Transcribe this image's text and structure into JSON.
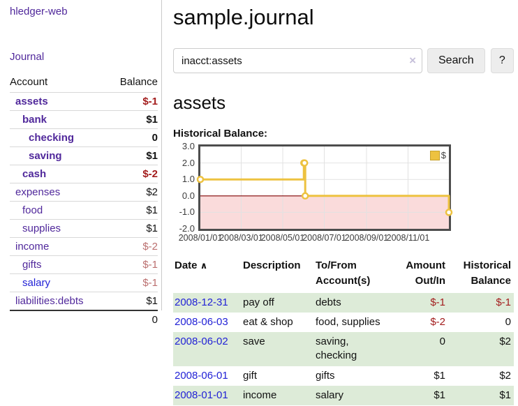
{
  "sidebar": {
    "brand": "hledger-web",
    "nav_journal": "Journal",
    "accounts_table": {
      "col_account": "Account",
      "col_balance": "Balance",
      "rows": [
        {
          "name": "assets",
          "indent": 1,
          "bold": true,
          "balance": "$-1",
          "balance_tone": "neg"
        },
        {
          "name": "bank",
          "indent": 2,
          "bold": true,
          "balance": "$1",
          "balance_tone": "pos"
        },
        {
          "name": "checking",
          "indent": 3,
          "bold": true,
          "balance": "0",
          "balance_tone": "pos"
        },
        {
          "name": "saving",
          "indent": 3,
          "bold": true,
          "balance": "$1",
          "balance_tone": "pos"
        },
        {
          "name": "cash",
          "indent": 2,
          "bold": true,
          "balance": "$-2",
          "balance_tone": "neg"
        },
        {
          "name": "expenses",
          "indent": 1,
          "bold": false,
          "balance": "$2",
          "balance_tone": "pos"
        },
        {
          "name": "food",
          "indent": 2,
          "bold": false,
          "balance": "$1",
          "balance_tone": "pos"
        },
        {
          "name": "supplies",
          "indent": 2,
          "bold": false,
          "balance": "$1",
          "balance_tone": "pos"
        },
        {
          "name": "income",
          "indent": 1,
          "bold": false,
          "balance": "$-2",
          "balance_tone": "negsoft"
        },
        {
          "name": "gifts",
          "indent": 2,
          "bold": false,
          "balance": "$-1",
          "balance_tone": "negsoft"
        },
        {
          "name": "salary",
          "indent": 2,
          "bold": false,
          "link_color": "blue",
          "balance": "$-1",
          "balance_tone": "negsoft"
        },
        {
          "name": "liabilities:debts",
          "indent": 1,
          "bold": false,
          "balance": "$1",
          "balance_tone": "pos"
        }
      ],
      "total": "0"
    }
  },
  "main": {
    "title": "sample.journal",
    "search": {
      "value": "inacct:assets",
      "clear_icon": "×",
      "search_button": "Search",
      "help_button": "?"
    },
    "account_heading": "assets",
    "chart_title": "Historical Balance:"
  },
  "chart_data": {
    "type": "line",
    "style": "step-after",
    "title": "Historical Balance",
    "x_range": [
      "2008-01-01",
      "2008-12-31"
    ],
    "ylim": [
      -2,
      3
    ],
    "y_ticks": [
      {
        "label": "3.0",
        "value": 3
      },
      {
        "label": "2.0",
        "value": 2
      },
      {
        "label": "1.0",
        "value": 1
      },
      {
        "label": "0.0",
        "value": 0
      },
      {
        "label": "-1.0",
        "value": -1
      },
      {
        "label": "-2.0",
        "value": -2
      }
    ],
    "x_ticks": [
      {
        "label": "2008/01/01",
        "date": "2008-01-01"
      },
      {
        "label": "2008/03/01",
        "date": "2008-03-01"
      },
      {
        "label": "2008/05/01",
        "date": "2008-05-01"
      },
      {
        "label": "2008/07/01",
        "date": "2008-07-01"
      },
      {
        "label": "2008/09/01",
        "date": "2008-09-01"
      },
      {
        "label": "2008/11/01",
        "date": "2008-11-01"
      }
    ],
    "series": [
      {
        "name": "$",
        "color": "#edc240",
        "points": [
          {
            "date": "2008-01-01",
            "value": 1
          },
          {
            "date": "2008-06-01",
            "value": 2
          },
          {
            "date": "2008-06-02",
            "value": 2
          },
          {
            "date": "2008-06-03",
            "value": 0
          },
          {
            "date": "2008-12-31",
            "value": -1
          }
        ]
      }
    ],
    "legend": {
      "label": "$",
      "position": "top-right"
    },
    "grid": true,
    "negative_region": true
  },
  "register": {
    "columns": [
      {
        "key": "date",
        "label": "Date",
        "align": "left",
        "has_sort": true
      },
      {
        "key": "description",
        "label": "Description",
        "align": "left"
      },
      {
        "key": "accounts",
        "label": "To/From\nAccount(s)",
        "align": "left"
      },
      {
        "key": "amount",
        "label": "Amount\nOut/In",
        "align": "right"
      },
      {
        "key": "balance",
        "label": "Historical\nBalance",
        "align": "right"
      }
    ],
    "sort_icon": "∧",
    "rows": [
      {
        "date": "2008-12-31",
        "description": "pay off",
        "accounts": "debts",
        "amount": "$-1",
        "amount_tone": "neg",
        "balance": "$-1",
        "balance_tone": "neg"
      },
      {
        "date": "2008-06-03",
        "description": "eat & shop",
        "accounts": "food, supplies",
        "amount": "$-2",
        "amount_tone": "neg",
        "balance": "0",
        "balance_tone": "pos"
      },
      {
        "date": "2008-06-02",
        "description": "save",
        "accounts": "saving, checking",
        "amount": "0",
        "amount_tone": "pos",
        "balance": "$2",
        "balance_tone": "pos"
      },
      {
        "date": "2008-06-01",
        "description": "gift",
        "accounts": "gifts",
        "amount": "$1",
        "amount_tone": "pos",
        "balance": "$2",
        "balance_tone": "pos"
      },
      {
        "date": "2008-01-01",
        "description": "income",
        "accounts": "salary",
        "amount": "$1",
        "amount_tone": "pos",
        "balance": "$1",
        "balance_tone": "pos"
      }
    ]
  },
  "colors": {
    "accent_purple": "#50289b",
    "link_blue": "#2222d6",
    "negative_strong": "#a31d1d",
    "negative_soft": "#bb6f6f",
    "row_stripe_green": "#ddebd8",
    "chart_line_gold": "#edc240",
    "chart_negative_fill": "#fadbdb",
    "chart_zero_line": "#800000",
    "chart_grid": "#e2e2e2",
    "chart_border": "#4d4d4d"
  }
}
